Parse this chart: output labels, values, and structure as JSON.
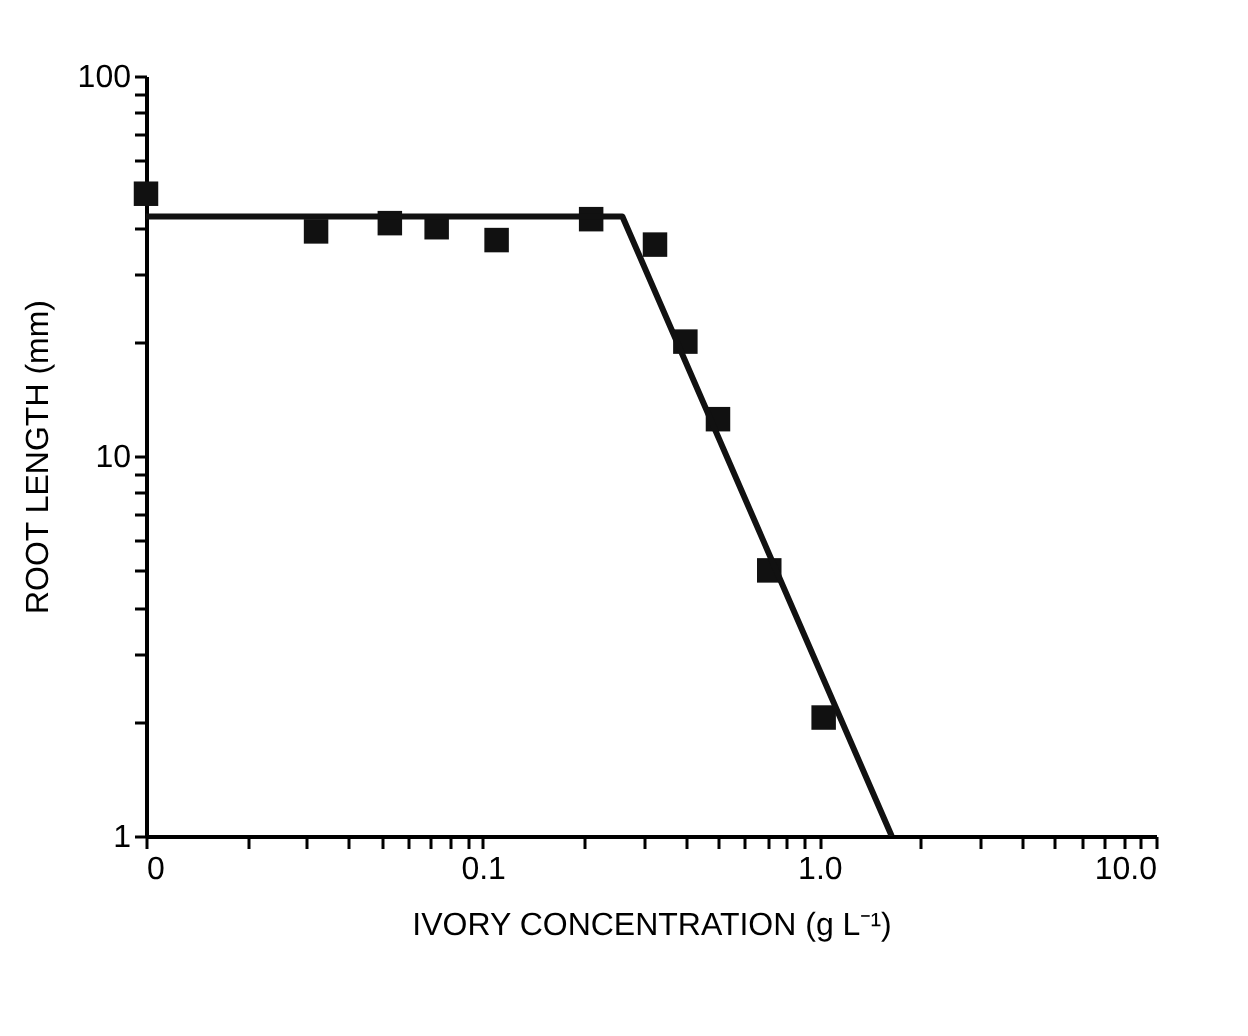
{
  "chart_data": {
    "type": "scatter",
    "xlabel": "IVORY CONCENTRATION (g L⁻¹)",
    "ylabel": "ROOT LENGTH (mm)",
    "log": "xy",
    "grid": false,
    "xlim": [
      0.01,
      10
    ],
    "ylim": [
      1,
      100
    ],
    "xticks": [
      {
        "value": 0.01,
        "label": "0"
      },
      {
        "value": 0.02,
        "label": null
      },
      {
        "value": 0.03,
        "label": null
      },
      {
        "value": 0.04,
        "label": null
      },
      {
        "value": 0.05,
        "label": null
      },
      {
        "value": 0.06,
        "label": null
      },
      {
        "value": 0.07,
        "label": null
      },
      {
        "value": 0.08,
        "label": null
      },
      {
        "value": 0.09,
        "label": null
      },
      0.1,
      {
        "value": 0.2,
        "label": null
      },
      {
        "value": 0.3,
        "label": null
      },
      {
        "value": 0.4,
        "label": null
      },
      {
        "value": 0.5,
        "label": null
      },
      {
        "value": 0.6,
        "label": null
      },
      {
        "value": 0.7,
        "label": null
      },
      {
        "value": 0.8,
        "label": null
      },
      {
        "value": 0.9,
        "label": null
      },
      {
        "value": 1,
        "label": "1.0"
      },
      {
        "value": 2,
        "label": null
      },
      {
        "value": 3,
        "label": null
      },
      {
        "value": 4,
        "label": null
      },
      {
        "value": 5,
        "label": null
      },
      {
        "value": 6,
        "label": null
      },
      {
        "value": 7,
        "label": null
      },
      {
        "value": 8,
        "label": null
      },
      {
        "value": 9,
        "label": null
      },
      {
        "value": 10,
        "label": "10.0"
      }
    ],
    "yticks": [
      1,
      {
        "value": 2,
        "label": null
      },
      {
        "value": 3,
        "label": null
      },
      {
        "value": 4,
        "label": null
      },
      {
        "value": 5,
        "label": null
      },
      {
        "value": 6,
        "label": null
      },
      {
        "value": 7,
        "label": null
      },
      {
        "value": 8,
        "label": null
      },
      {
        "value": 9,
        "label": null
      },
      10,
      {
        "value": 20,
        "label": null
      },
      {
        "value": 30,
        "label": null
      },
      {
        "value": 40,
        "label": null
      },
      {
        "value": 50,
        "label": null
      },
      {
        "value": 60,
        "label": null
      },
      {
        "value": 70,
        "label": null
      },
      {
        "value": 80,
        "label": null
      },
      {
        "value": 90,
        "label": null
      },
      100
    ],
    "series": [
      {
        "marker": "square",
        "color": "#111111",
        "x": [
          0.01,
          0.032,
          0.053,
          0.073,
          0.11,
          0.21,
          0.325,
          0.4,
          0.5,
          0.71,
          1.03
        ],
        "values": [
          49,
          39,
          41,
          40,
          37,
          42,
          36,
          20,
          12.5,
          5,
          2.05
        ]
      },
      {
        "type": "line",
        "marker": "none",
        "color": "#111111",
        "x": [
          0.01,
          0.26,
          1.64
        ],
        "values": [
          42.7,
          42.7,
          1
        ]
      }
    ]
  }
}
